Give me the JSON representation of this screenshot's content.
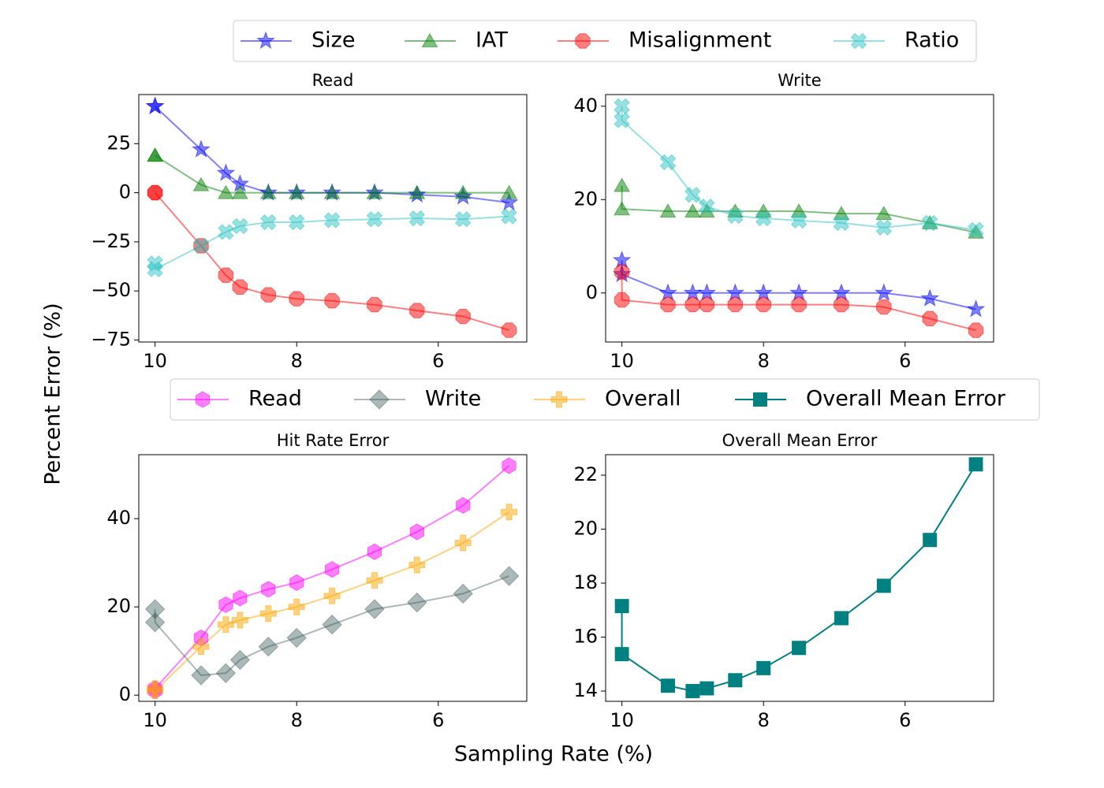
{
  "xlabel": "Sampling Rate (%)",
  "ylabel": "Percent Error (%)",
  "chart_data": [
    {
      "type": "line",
      "title": "Read",
      "x": [
        10,
        10,
        9.35,
        9,
        8.8,
        8.4,
        8,
        7.5,
        6.9,
        6.3,
        5.65,
        5
      ],
      "xlim": [
        10.23,
        4.75
      ],
      "xticks": [
        10,
        8,
        6
      ],
      "ylim": [
        -76,
        50
      ],
      "yticks": [
        {
          "value": -75,
          "label": "−75"
        },
        {
          "value": -50,
          "label": "−50"
        },
        {
          "value": -25,
          "label": "−25"
        },
        0,
        25
      ],
      "series": [
        {
          "name": "Size",
          "color": "#0000ff",
          "marker": "star",
          "alpha": 0.5,
          "values": [
            44,
            44,
            22,
            10,
            4.5,
            0,
            0,
            0,
            0,
            -1,
            -2,
            -5
          ]
        },
        {
          "name": "IAT",
          "color": "#008000",
          "marker": "triangle",
          "alpha": 0.5,
          "values": [
            19,
            19,
            4,
            0,
            0,
            0,
            0,
            0,
            0,
            0,
            0,
            0
          ]
        },
        {
          "name": "Misalignment",
          "color": "#ff0000",
          "marker": "octagon",
          "alpha": 0.5,
          "values": [
            0,
            0,
            -27,
            -42,
            -48,
            -52,
            -54,
            -55,
            -57,
            -60,
            -63,
            -70
          ]
        },
        {
          "name": "Ratio",
          "color": "#2ec4c4",
          "marker": "x",
          "alpha": 0.5,
          "values": [
            -36,
            -39,
            -27,
            -20,
            -17,
            -15,
            -15,
            -14,
            -13.5,
            -13,
            -13.5,
            -12
          ]
        }
      ]
    },
    {
      "type": "line",
      "title": "Write",
      "x": [
        10,
        10,
        9.35,
        9,
        8.8,
        8.4,
        8,
        7.5,
        6.9,
        6.3,
        5.65,
        5
      ],
      "xlim": [
        10.23,
        4.75
      ],
      "xticks": [
        10,
        8,
        6
      ],
      "ylim": [
        -10.5,
        42.5
      ],
      "yticks": [
        0,
        20,
        40
      ],
      "series": [
        {
          "name": "Size",
          "color": "#0000ff",
          "marker": "star",
          "alpha": 0.5,
          "values": [
            7,
            4,
            0,
            0,
            0,
            0,
            0,
            0,
            0,
            0,
            -1.2,
            -3.5
          ]
        },
        {
          "name": "IAT",
          "color": "#008000",
          "marker": "triangle",
          "alpha": 0.5,
          "values": [
            23,
            18,
            17.5,
            17.5,
            17.5,
            17.5,
            17.5,
            17.5,
            17,
            17,
            15,
            13
          ]
        },
        {
          "name": "Misalignment",
          "color": "#ff0000",
          "marker": "octagon",
          "alpha": 0.5,
          "values": [
            4.5,
            -1.5,
            -2.5,
            -2.5,
            -2.5,
            -2.5,
            -2.5,
            -2.5,
            -2.5,
            -3,
            -5.5,
            -8
          ]
        },
        {
          "name": "Ratio",
          "color": "#2ec4c4",
          "marker": "x",
          "alpha": 0.5,
          "values": [
            40,
            37,
            28,
            21,
            18.5,
            16.5,
            16,
            15.5,
            15,
            14,
            15,
            13.5
          ]
        }
      ]
    },
    {
      "type": "line",
      "title": "Hit Rate Error",
      "x": [
        10,
        10,
        9.35,
        9,
        8.8,
        8.4,
        8,
        7.5,
        6.9,
        6.3,
        5.65,
        5
      ],
      "xlim": [
        10.23,
        4.75
      ],
      "xticks": [
        10,
        8,
        6
      ],
      "ylim": [
        -1.4,
        54.5
      ],
      "yticks": [
        0,
        20,
        40
      ],
      "series": [
        {
          "name": "Read",
          "color": "#ff00ff",
          "marker": "hexagon",
          "alpha": 0.5,
          "values": [
            1,
            1.5,
            13,
            20.5,
            22,
            24,
            25.5,
            28.5,
            32.5,
            37,
            43,
            52
          ]
        },
        {
          "name": "Write",
          "color": "#2f4f4f",
          "marker": "diamond",
          "alpha": 0.4,
          "values": [
            19.5,
            16.5,
            4.5,
            5,
            8,
            11,
            13,
            16,
            19.5,
            21,
            23,
            27
          ]
        },
        {
          "name": "Overall",
          "color": "#ffa500",
          "marker": "plus",
          "alpha": 0.5,
          "values": [
            1.5,
            1,
            11,
            16,
            17,
            18.5,
            20,
            22.5,
            26,
            29.5,
            34.5,
            41.5
          ]
        }
      ]
    },
    {
      "type": "line",
      "title": "Overall Mean Error",
      "x": [
        10,
        10,
        9.35,
        9,
        8.8,
        8.4,
        8,
        7.5,
        6.9,
        6.3,
        5.65,
        5
      ],
      "xlim": [
        10.23,
        4.75
      ],
      "xticks": [
        10,
        8,
        6
      ],
      "ylim": [
        13.62,
        22.76
      ],
      "yticks": [
        14,
        16,
        18,
        20,
        22
      ],
      "series": [
        {
          "name": "Overall Mean Error",
          "color": "#008080",
          "marker": "square",
          "alpha": 1,
          "values": [
            17.15,
            15.37,
            14.2,
            14.0,
            14.1,
            14.4,
            14.85,
            15.6,
            16.7,
            17.9,
            19.6,
            22.4
          ]
        }
      ]
    }
  ]
}
